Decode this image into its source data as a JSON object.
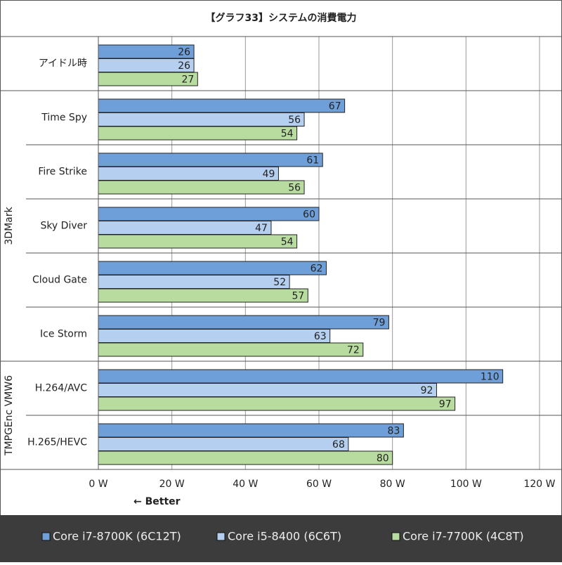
{
  "chart_data": {
    "type": "bar",
    "orientation": "horizontal",
    "title": "【グラフ33】システムの消費電力",
    "groups": [
      {
        "name": null,
        "categories": [
          "アイドル時"
        ]
      },
      {
        "name": "3DMark",
        "categories": [
          "Time Spy",
          "Fire Strike",
          "Sky Diver",
          "Cloud Gate",
          "Ice Storm"
        ]
      },
      {
        "name": "TMPGEnc VMW6",
        "categories": [
          "H.264/AVC",
          "H.265/HEVC"
        ]
      }
    ],
    "series": [
      {
        "name": "Core i7-8700K (6C12T)",
        "color": "#6f9fd8",
        "values": [
          26,
          67,
          61,
          60,
          62,
          79,
          110,
          83
        ]
      },
      {
        "name": "Core i5-8400 (6C6T)",
        "color": "#b4cff0",
        "values": [
          26,
          56,
          49,
          47,
          52,
          63,
          92,
          68
        ]
      },
      {
        "name": "Core i7-7700K (4C8T)",
        "color": "#b8dca0",
        "values": [
          27,
          54,
          56,
          54,
          57,
          72,
          97,
          80
        ]
      }
    ],
    "xlim": [
      0,
      120
    ],
    "xticks": [
      {
        "value": 0,
        "label": "0 W"
      },
      {
        "value": 20,
        "label": "20 W"
      },
      {
        "value": 40,
        "label": "40 W"
      },
      {
        "value": 60,
        "label": "60 W"
      },
      {
        "value": 80,
        "label": "80 W"
      },
      {
        "value": 100,
        "label": "100 W"
      },
      {
        "value": 120,
        "label": "120 W"
      }
    ],
    "annotation": "← Better",
    "grid": true,
    "legend": "bottom"
  }
}
